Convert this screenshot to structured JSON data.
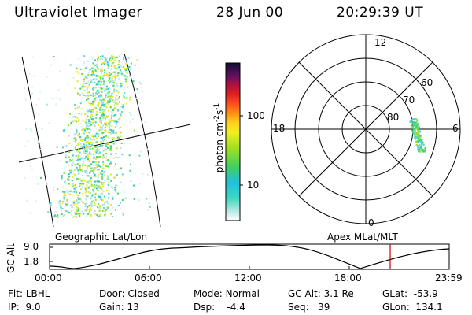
{
  "header": {
    "title": "Ultraviolet Imager",
    "date": "28 Jun 00",
    "time": "20:29:39 UT"
  },
  "geo_panel": {
    "label": "Geographic Lat/Lon"
  },
  "colorbar": {
    "unit_label": "photon cm",
    "unit_exp1": "-2",
    "unit_mid": "s",
    "unit_exp2": "-1",
    "ticks": [
      "100",
      "10"
    ]
  },
  "polar_plot": {
    "label": "Apex MLat/MLT",
    "mlt_labels": {
      "top": "12",
      "left": "18",
      "right": "6",
      "bottom": "0"
    },
    "lat_labels": [
      "60",
      "70",
      "80"
    ]
  },
  "orbit_plot": {
    "ylabel": "GC Alt",
    "yticks": [
      "9.0",
      "1.8"
    ],
    "xticks": [
      "00:00",
      "06:00",
      "12:00",
      "18:00",
      "23:59"
    ]
  },
  "info": {
    "flt_label": "Flt:",
    "flt_value": "LBHL",
    "ip_label": "IP:",
    "ip_value": "9.0",
    "door_label": "Door:",
    "door_value": "Closed",
    "gain_label": "Gain:",
    "gain_value": "13",
    "mode_label": "Mode:",
    "mode_value": "Normal",
    "dsp_label": "Dsp:",
    "dsp_value": "-4.4",
    "gcalt_label": "GC Alt:",
    "gcalt_value": "3.1 Re",
    "seq_label": "Seq:",
    "seq_value": "39",
    "glat_label": "GLat:",
    "glat_value": "-53.9",
    "glon_label": "GLon:",
    "glon_value": "134.1"
  },
  "colors": {
    "marker": "#cc0000",
    "ink": "#000000"
  }
}
